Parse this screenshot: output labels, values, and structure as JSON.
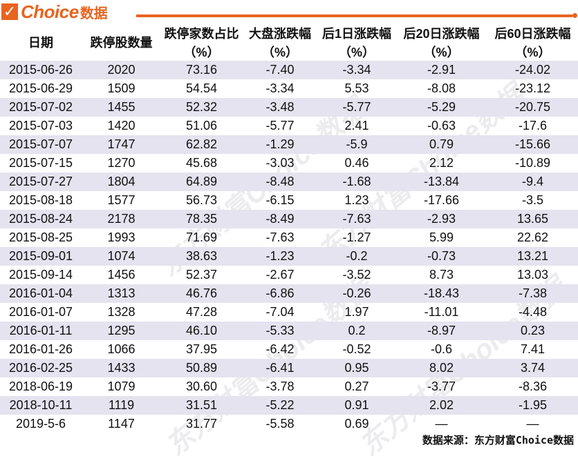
{
  "logo": {
    "check": "✓",
    "brand": "Choice",
    "brand_cn": "数据"
  },
  "headers": [
    {
      "line1": "日期",
      "line2": ""
    },
    {
      "line1": "跌停股数量",
      "line2": ""
    },
    {
      "line1": "跌停家数占比",
      "line2": "（%）"
    },
    {
      "line1": "大盘涨跌幅",
      "line2": "（%）"
    },
    {
      "line1": "后1日涨跌幅",
      "line2": "（%）"
    },
    {
      "line1": "后20日涨跌幅",
      "line2": "（%）"
    },
    {
      "line1": "后60日涨跌幅",
      "line2": "（%）"
    }
  ],
  "rows": [
    [
      "2015-06-26",
      "2020",
      "73.16",
      "-7.40",
      "-3.34",
      "-2.91",
      "-24.02"
    ],
    [
      "2015-06-29",
      "1509",
      "54.54",
      "-3.34",
      "5.53",
      "-8.08",
      "-23.12"
    ],
    [
      "2015-07-02",
      "1455",
      "52.32",
      "-3.48",
      "-5.77",
      "-5.29",
      "-20.75"
    ],
    [
      "2015-07-03",
      "1420",
      "51.06",
      "-5.77",
      "2.41",
      "-0.63",
      "-17.6"
    ],
    [
      "2015-07-07",
      "1747",
      "62.82",
      "-1.29",
      "-5.9",
      "0.79",
      "-15.66"
    ],
    [
      "2015-07-15",
      "1270",
      "45.68",
      "-3.03",
      "0.46",
      "2.12",
      "-10.89"
    ],
    [
      "2015-07-27",
      "1804",
      "64.89",
      "-8.48",
      "-1.68",
      "-13.84",
      "-9.4"
    ],
    [
      "2015-08-18",
      "1577",
      "56.73",
      "-6.15",
      "1.23",
      "-17.66",
      "-3.5"
    ],
    [
      "2015-08-24",
      "2178",
      "78.35",
      "-8.49",
      "-7.63",
      "-2.93",
      "13.65"
    ],
    [
      "2015-08-25",
      "1993",
      "71.69",
      "-7.63",
      "-1.27",
      "5.99",
      "22.62"
    ],
    [
      "2015-09-01",
      "1074",
      "38.63",
      "-1.23",
      "-0.2",
      "-0.73",
      "13.21"
    ],
    [
      "2015-09-14",
      "1456",
      "52.37",
      "-2.67",
      "-3.52",
      "8.73",
      "13.03"
    ],
    [
      "2016-01-04",
      "1313",
      "46.76",
      "-6.86",
      "-0.26",
      "-18.43",
      "-7.38"
    ],
    [
      "2016-01-07",
      "1328",
      "47.28",
      "-7.04",
      "1.97",
      "-11.01",
      "-4.48"
    ],
    [
      "2016-01-11",
      "1295",
      "46.10",
      "-5.33",
      "0.2",
      "-8.97",
      "0.23"
    ],
    [
      "2016-01-26",
      "1066",
      "37.95",
      "-6.42",
      "-0.52",
      "-0.6",
      "7.41"
    ],
    [
      "2016-02-25",
      "1433",
      "50.89",
      "-6.41",
      "0.95",
      "8.02",
      "3.74"
    ],
    [
      "2018-06-19",
      "1079",
      "30.60",
      "-3.78",
      "0.27",
      "-3.77",
      "-8.36"
    ],
    [
      "2018-10-11",
      "1119",
      "31.51",
      "-5.22",
      "0.91",
      "2.02",
      "-1.95"
    ],
    [
      "2019-5-6",
      "1147",
      "31.77",
      "-5.58",
      "0.69",
      "—",
      "—"
    ]
  ],
  "source": "数据来源：东方财富Choice数据",
  "watermark": "东方财富Choice数据",
  "colors": {
    "brand": "#e8641f",
    "row_shade": "#e4e3ef"
  }
}
